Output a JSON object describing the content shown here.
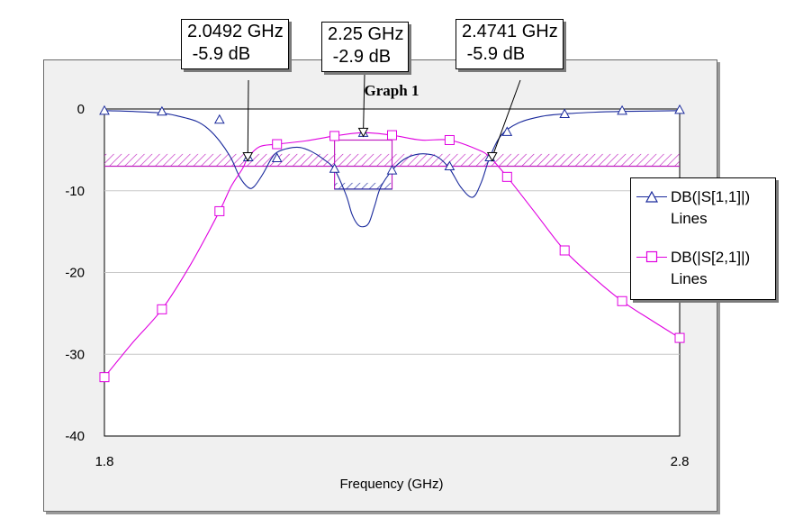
{
  "chart_data": {
    "type": "line",
    "title": "Graph 1",
    "xlabel": "Frequency (GHz)",
    "ylabel": "",
    "xlim": [
      1.8,
      2.8
    ],
    "ylim": [
      -40,
      0
    ],
    "x_ticks": [
      "1.8",
      "2.8"
    ],
    "y_ticks": [
      "0",
      "-10",
      "-20",
      "-30",
      "-40"
    ],
    "grid": true,
    "legend_position": "right",
    "series": [
      {
        "name": "DB(|S[1,1]|)",
        "sub": "Lines",
        "color": "#1a2a9c",
        "marker": "triangle",
        "x": [
          1.8,
          1.85,
          1.9,
          1.93,
          1.96,
          1.98,
          2.0,
          2.02,
          2.035,
          2.05,
          2.06,
          2.075,
          2.09,
          2.1,
          2.12,
          2.14,
          2.16,
          2.18,
          2.2,
          2.22,
          2.23,
          2.24,
          2.25,
          2.26,
          2.27,
          2.28,
          2.3,
          2.32,
          2.34,
          2.36,
          2.38,
          2.4,
          2.42,
          2.44,
          2.455,
          2.47,
          2.49,
          2.52,
          2.56,
          2.6,
          2.65,
          2.7,
          2.8
        ],
        "y": [
          -0.2,
          -0.3,
          -0.5,
          -0.9,
          -1.5,
          -2.4,
          -3.9,
          -6.0,
          -8.3,
          -9.6,
          -9.5,
          -8.0,
          -6.1,
          -5.3,
          -4.8,
          -4.7,
          -5.2,
          -6.1,
          -7.4,
          -10.5,
          -12.8,
          -14.1,
          -14.4,
          -13.9,
          -11.8,
          -9.6,
          -7.5,
          -6.2,
          -5.6,
          -5.5,
          -5.9,
          -7.3,
          -9.6,
          -10.8,
          -9.0,
          -5.9,
          -3.2,
          -1.7,
          -0.9,
          -0.6,
          -0.4,
          -0.3,
          -0.2
        ],
        "marker_x": [
          1.8,
          1.9,
          2.0,
          2.05,
          2.1,
          2.2,
          2.25,
          2.3,
          2.4,
          2.47,
          2.5,
          2.6,
          2.7,
          2.8
        ],
        "marker_y": [
          -0.2,
          -0.3,
          -1.3,
          -5.9,
          -6.0,
          -7.3,
          -2.9,
          -7.5,
          -7.0,
          -5.9,
          -2.8,
          -0.6,
          -0.2,
          -0.1
        ]
      },
      {
        "name": "DB(|S[2,1]|)",
        "sub": "Lines",
        "color": "#e000e0",
        "marker": "square",
        "x": [
          1.8,
          1.85,
          1.9,
          1.95,
          2.0,
          2.02,
          2.04,
          2.05,
          2.07,
          2.1,
          2.15,
          2.2,
          2.25,
          2.3,
          2.35,
          2.4,
          2.45,
          2.47,
          2.5,
          2.55,
          2.6,
          2.65,
          2.7,
          2.75,
          2.8
        ],
        "y": [
          -32.8,
          -28.5,
          -24.5,
          -19.0,
          -12.5,
          -9.5,
          -7.3,
          -5.9,
          -4.6,
          -4.3,
          -3.9,
          -3.3,
          -2.9,
          -3.2,
          -3.8,
          -3.8,
          -5.0,
          -5.9,
          -8.3,
          -12.8,
          -17.3,
          -20.6,
          -23.5,
          -25.8,
          -28.0
        ],
        "marker_x": [
          1.8,
          1.9,
          2.0,
          2.1,
          2.2,
          2.3,
          2.4,
          2.5,
          2.6,
          2.7,
          2.8
        ],
        "marker_y": [
          -32.8,
          -24.5,
          -12.5,
          -4.3,
          -3.3,
          -3.2,
          -3.8,
          -8.3,
          -17.3,
          -23.5,
          -28.0
        ]
      }
    ],
    "markers": [
      {
        "freq": "2.0492 GHz",
        "value": "-5.9 dB",
        "x": 2.0492,
        "y": -5.9
      },
      {
        "freq": "2.25 GHz",
        "value": "-2.9 dB",
        "x": 2.25,
        "y": -2.9
      },
      {
        "freq": "2.4741 GHz",
        "value": "-5.9 dB",
        "x": 2.4741,
        "y": -5.9
      }
    ],
    "spec_regions": [
      {
        "x": [
          1.8,
          2.8
        ],
        "y": [
          -7.0,
          -5.5
        ]
      },
      {
        "x": [
          2.2,
          2.3
        ],
        "y": [
          -9.8,
          -3.8
        ]
      }
    ]
  }
}
